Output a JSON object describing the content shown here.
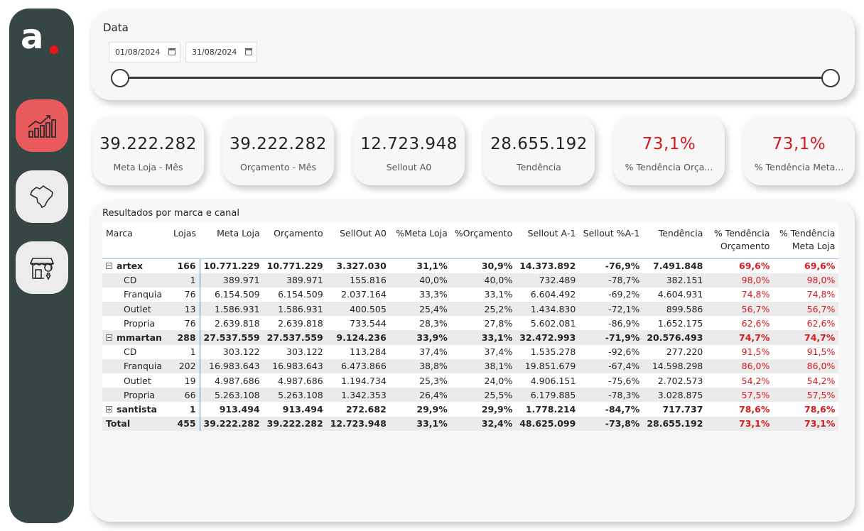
{
  "sidebar": {
    "logo_text": "a",
    "nav": [
      {
        "icon": "growth-chart-icon",
        "active": true
      },
      {
        "icon": "brazil-map-icon",
        "active": false
      },
      {
        "icon": "store-location-icon",
        "active": false
      }
    ]
  },
  "date_filter": {
    "title": "Data",
    "start": "01/08/2024",
    "end": "31/08/2024"
  },
  "kpis": [
    {
      "value": "39.222.282",
      "label": "Meta Loja - Mês",
      "highlight": false
    },
    {
      "value": "39.222.282",
      "label": "Orçamento - Mês",
      "highlight": false
    },
    {
      "value": "12.723.948",
      "label": "Sellout A0",
      "highlight": false
    },
    {
      "value": "28.655.192",
      "label": "Tendência",
      "highlight": false
    },
    {
      "value": "73,1%",
      "label": "% Tendência Orça...",
      "highlight": true
    },
    {
      "value": "73,1%",
      "label": "% Tendência Meta...",
      "highlight": true
    }
  ],
  "table": {
    "title": "Resultados por marca e canal",
    "headers": [
      "Marca",
      "Lojas",
      "Meta Loja",
      "Orçamento",
      "SellOut A0",
      "%Meta Loja",
      "%Orçamento",
      "Sellout A-1",
      "Sellout %A-1",
      "Tendência",
      "% Tendência\nOrçamento",
      "% Tendência\nMeta Loja"
    ],
    "rows": [
      {
        "name": "artex",
        "level": 0,
        "expand": "minus",
        "bold": true,
        "cells": [
          "166",
          "10.771.229",
          "10.771.229",
          "3.327.030",
          "31,1%",
          "30,9%",
          "14.373.892",
          "-76,9%",
          "7.491.848",
          "69,6%",
          "69,6%"
        ]
      },
      {
        "name": "CD",
        "level": 1,
        "bold": false,
        "cells": [
          "1",
          "389.971",
          "389.971",
          "155.816",
          "40,0%",
          "40,0%",
          "732.489",
          "-78,7%",
          "382.151",
          "98,0%",
          "98,0%"
        ]
      },
      {
        "name": "Franquia",
        "level": 1,
        "bold": false,
        "cells": [
          "76",
          "6.154.509",
          "6.154.509",
          "2.037.164",
          "33,3%",
          "33,1%",
          "6.604.492",
          "-69,2%",
          "4.604.931",
          "74,8%",
          "74,8%"
        ]
      },
      {
        "name": "Outlet",
        "level": 1,
        "bold": false,
        "cells": [
          "13",
          "1.586.931",
          "1.586.931",
          "400.505",
          "25,4%",
          "25,2%",
          "1.434.830",
          "-72,1%",
          "899.586",
          "56,7%",
          "56,7%"
        ]
      },
      {
        "name": "Propria",
        "level": 1,
        "bold": false,
        "cells": [
          "76",
          "2.639.818",
          "2.639.818",
          "733.544",
          "28,3%",
          "27,8%",
          "5.602.081",
          "-86,9%",
          "1.652.175",
          "62,6%",
          "62,6%"
        ]
      },
      {
        "name": "mmartan",
        "level": 0,
        "expand": "minus",
        "bold": true,
        "cells": [
          "288",
          "27.537.559",
          "27.537.559",
          "9.124.236",
          "33,9%",
          "33,1%",
          "32.472.993",
          "-71,9%",
          "20.576.493",
          "74,7%",
          "74,7%"
        ]
      },
      {
        "name": "CD",
        "level": 1,
        "bold": false,
        "cells": [
          "1",
          "303.122",
          "303.122",
          "113.284",
          "37,4%",
          "37,4%",
          "1.535.278",
          "-92,6%",
          "277.220",
          "91,5%",
          "91,5%"
        ]
      },
      {
        "name": "Franquia",
        "level": 1,
        "bold": false,
        "cells": [
          "202",
          "16.983.643",
          "16.983.643",
          "6.473.866",
          "38,8%",
          "38,1%",
          "19.851.679",
          "-67,4%",
          "14.598.298",
          "86,0%",
          "86,0%"
        ]
      },
      {
        "name": "Outlet",
        "level": 1,
        "bold": false,
        "cells": [
          "19",
          "4.987.686",
          "4.987.686",
          "1.194.734",
          "25,3%",
          "24,0%",
          "4.906.151",
          "-75,6%",
          "2.702.573",
          "54,2%",
          "54,2%"
        ]
      },
      {
        "name": "Propria",
        "level": 1,
        "bold": false,
        "cells": [
          "66",
          "5.263.108",
          "5.263.108",
          "1.342.353",
          "26,4%",
          "25,5%",
          "6.179.885",
          "-78,3%",
          "3.028.875",
          "57,5%",
          "57,5%"
        ]
      },
      {
        "name": "santista",
        "level": 0,
        "expand": "plus",
        "bold": true,
        "cells": [
          "1",
          "913.494",
          "913.494",
          "272.682",
          "29,9%",
          "29,9%",
          "1.778.214",
          "-84,7%",
          "717.737",
          "78,6%",
          "78,6%"
        ]
      },
      {
        "name": "Total",
        "level": 0,
        "bold": true,
        "cells": [
          "455",
          "39.222.282",
          "39.222.282",
          "12.723.948",
          "33,1%",
          "32,4%",
          "48.625.099",
          "-73,8%",
          "28.655.192",
          "73,1%",
          "73,1%"
        ]
      }
    ]
  },
  "colors": {
    "sidebar": "#354645",
    "accent_red": "#d61a20",
    "active_nav": "#e85a5c"
  }
}
